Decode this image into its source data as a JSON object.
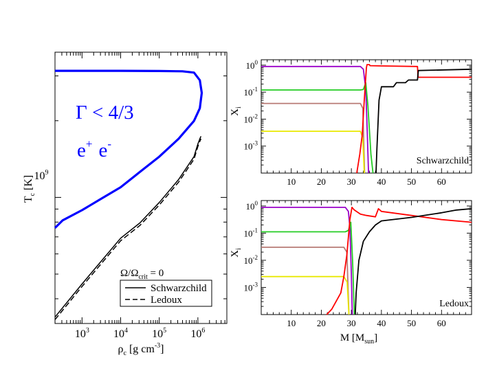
{
  "figure": {
    "left": {
      "ylabel_main": "T",
      "ylabel_sub": "c",
      "ylabel_unit": " [K]",
      "xlabel_main": "ρ",
      "xlabel_sub": "c",
      "xlabel_unit": " [g cm",
      "xlabel_exp": "-3",
      "xlabel_close": "]",
      "gamma_label": "Γ < 4/3",
      "pair_base": "e",
      "pair_plus": "+",
      "pair_minus": "-",
      "omega_main": "Ω/Ω",
      "omega_sub": "crit",
      "omega_rest": " = 0",
      "legend": [
        {
          "label": "Schwarzchild",
          "style": "solid"
        },
        {
          "label": "Ledoux",
          "style": "dashed"
        }
      ],
      "xticks": [
        {
          "base": "10",
          "exp": "3",
          "v": 3
        },
        {
          "base": "10",
          "exp": "4",
          "v": 4
        },
        {
          "base": "10",
          "exp": "5",
          "v": 5
        },
        {
          "base": "10",
          "exp": "6",
          "v": 6
        }
      ],
      "ytick": {
        "base": "10",
        "exp": "9"
      }
    },
    "top_right": {
      "label": "Schwarzchild",
      "ylabel": "X",
      "ylabel_sub": "i"
    },
    "bottom_right": {
      "label": "Ledoux",
      "ylabel": "X",
      "ylabel_sub": "i",
      "xlabel_main": "M [M",
      "xlabel_sub": "sun",
      "xlabel_close": "]"
    },
    "right_xticks": [
      "10",
      "20",
      "30",
      "40",
      "50",
      "60"
    ],
    "right_yticks": [
      {
        "base": "10",
        "exp": "0",
        "v": 0
      },
      {
        "base": "10",
        "exp": "-1",
        "v": -1
      },
      {
        "base": "10",
        "exp": "-2",
        "v": -2
      },
      {
        "base": "10",
        "exp": "-3",
        "v": -3
      }
    ]
  },
  "chart_data": [
    {
      "type": "line",
      "title": "",
      "xlabel": "ρc [g cm-3]",
      "ylabel": "Tc [K]",
      "xscale": "log",
      "yscale": "log",
      "xlim_log10": [
        2.3,
        6.75
      ],
      "ylim_log10": [
        8.505,
        9.57
      ],
      "series": [
        {
          "name": "Γ < 4/3 boundary",
          "color": "#0000ff",
          "style": "solid",
          "x_log10": [
            2.3,
            2.5,
            3.0,
            3.5,
            4.0,
            4.5,
            5.0,
            5.5,
            5.9,
            6.05,
            6.1,
            6.05,
            5.9,
            5.6,
            5.0,
            4.0,
            3.0,
            2.3
          ],
          "y_log10": [
            8.88,
            8.91,
            8.95,
            8.995,
            9.04,
            9.1,
            9.16,
            9.23,
            9.3,
            9.35,
            9.41,
            9.46,
            9.49,
            9.495,
            9.496,
            9.497,
            9.497,
            9.497
          ]
        },
        {
          "name": "Schwarzchild",
          "color": "#000000",
          "style": "solid",
          "x_log10": [
            2.3,
            3.0,
            3.5,
            4.0,
            4.5,
            5.0,
            5.5,
            5.9,
            6.0,
            6.05,
            6.08
          ],
          "y_log10": [
            8.53,
            8.66,
            8.75,
            8.84,
            8.9,
            8.98,
            9.07,
            9.16,
            9.21,
            9.23,
            9.24
          ]
        },
        {
          "name": "Ledoux",
          "color": "#000000",
          "style": "dashed",
          "x_log10": [
            2.3,
            3.0,
            3.5,
            4.0,
            4.5,
            5.0,
            5.5,
            5.9,
            6.0,
            6.05,
            6.08
          ],
          "y_log10": [
            8.52,
            8.65,
            8.74,
            8.83,
            8.89,
            8.97,
            9.06,
            9.15,
            9.2,
            9.22,
            9.23
          ]
        }
      ],
      "annotations": [
        "Γ < 4/3",
        "e+ e-",
        "Ω/Ωcrit = 0"
      ],
      "legend_position": "bottom-right"
    },
    {
      "type": "line",
      "panel": "Schwarzchild",
      "xlabel": "M [Msun]",
      "ylabel": "Xi",
      "yscale": "log",
      "xlim": [
        0,
        70
      ],
      "ylim_log10": [
        -4,
        0.2
      ],
      "series": [
        {
          "name": "purple",
          "color": "#9a00c8",
          "x": [
            0,
            33,
            34,
            34.8,
            35.3,
            35.7
          ],
          "y_log10": [
            -0.05,
            -0.05,
            -0.15,
            -0.9,
            -2.5,
            -4
          ]
        },
        {
          "name": "green",
          "color": "#22cc22",
          "x": [
            0,
            33,
            34,
            34.8,
            35.5,
            36.5,
            37.2
          ],
          "y_log10": [
            -0.92,
            -0.92,
            -0.9,
            -0.65,
            -1.5,
            -3.3,
            -4
          ]
        },
        {
          "name": "brown",
          "color": "#b87a74",
          "x": [
            0,
            33,
            33.8,
            34.4
          ],
          "y_log10": [
            -1.42,
            -1.42,
            -1.6,
            -4
          ]
        },
        {
          "name": "yellow",
          "color": "#e8e800",
          "x": [
            0,
            33,
            33.8,
            34.3
          ],
          "y_log10": [
            -2.45,
            -2.45,
            -2.7,
            -4
          ]
        },
        {
          "name": "red",
          "color": "#ff0000",
          "x": [
            31.8,
            32.8,
            33.6,
            34.3,
            35,
            35.2,
            36,
            36.2,
            40,
            52,
            52.2,
            70
          ],
          "y_log10": [
            -4,
            -3.3,
            -2.6,
            -1.3,
            -0.1,
            0.02,
            0.02,
            -0.02,
            -0.03,
            -0.05,
            -0.45,
            -0.45
          ]
        },
        {
          "name": "black",
          "color": "#000000",
          "x": [
            38.2,
            38.5,
            39.2,
            40,
            44,
            45,
            48,
            49,
            52,
            52.3,
            70
          ],
          "y_log10": [
            -4,
            -3.1,
            -1.3,
            -0.8,
            -0.8,
            -0.65,
            -0.65,
            -0.55,
            -0.55,
            -0.2,
            -0.15
          ]
        }
      ]
    },
    {
      "type": "line",
      "panel": "Ledoux",
      "xlabel": "M [Msun]",
      "ylabel": "Xi",
      "yscale": "log",
      "xlim": [
        0,
        70
      ],
      "ylim_log10": [
        -4,
        0.2
      ],
      "series": [
        {
          "name": "purple",
          "color": "#9a00c8",
          "x": [
            0,
            28,
            29,
            29.5,
            30,
            30.3
          ],
          "y_log10": [
            -0.05,
            -0.05,
            -0.2,
            -0.8,
            -2.5,
            -4
          ]
        },
        {
          "name": "green",
          "color": "#22cc22",
          "x": [
            0,
            28,
            29,
            29.8,
            30.4,
            31
          ],
          "y_log10": [
            -0.95,
            -0.95,
            -0.9,
            -0.6,
            -2,
            -4
          ]
        },
        {
          "name": "brown",
          "color": "#b87a74",
          "x": [
            0,
            27.5,
            28.5,
            29.2
          ],
          "y_log10": [
            -1.52,
            -1.52,
            -1.7,
            -4
          ]
        },
        {
          "name": "yellow",
          "color": "#e8e800",
          "x": [
            0,
            27.5,
            28.6,
            29.2
          ],
          "y_log10": [
            -2.6,
            -2.6,
            -2.8,
            -4
          ]
        },
        {
          "name": "red",
          "color": "#ff0000",
          "x": [
            21.8,
            23.5,
            25,
            26.5,
            27.5,
            28.5,
            29.5,
            30.2,
            31,
            33,
            35,
            38,
            39,
            40,
            50,
            60,
            70
          ],
          "y_log10": [
            -4,
            -3.8,
            -3.5,
            -3.2,
            -2.6,
            -1.8,
            -0.5,
            -0.05,
            -0.15,
            -0.3,
            -0.35,
            -0.4,
            -0.1,
            -0.2,
            -0.35,
            -0.5,
            -0.6
          ]
        },
        {
          "name": "black",
          "color": "#000000",
          "x": [
            31.3,
            31.6,
            32.5,
            34,
            36,
            38,
            40,
            50,
            60,
            65,
            70
          ],
          "y_log10": [
            -4,
            -3.2,
            -2,
            -1.3,
            -0.95,
            -0.7,
            -0.55,
            -0.42,
            -0.25,
            -0.15,
            -0.1
          ]
        }
      ]
    }
  ]
}
